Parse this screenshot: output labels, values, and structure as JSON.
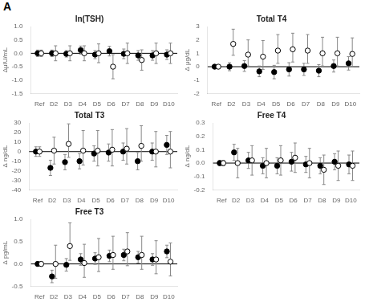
{
  "chart_data": [
    {
      "type": "scatter",
      "title": "ln(TSH)",
      "y_label": "ΔμIU/mL",
      "annotation": "A",
      "categories": [
        "Ref",
        "D2",
        "D3",
        "D4",
        "D5",
        "D6",
        "D7",
        "D8",
        "D9",
        "D10"
      ],
      "series": [
        {
          "color": "black",
          "marker": "circle",
          "values": [
            0.0,
            0.0,
            -0.02,
            0.12,
            -0.05,
            0.08,
            -0.02,
            -0.08,
            -0.08,
            -0.05
          ],
          "yerr_lo": [
            0.12,
            0.12,
            0.12,
            0.15,
            0.15,
            0.18,
            0.18,
            0.18,
            0.18,
            0.18
          ],
          "yerr_hi": [
            0.12,
            0.12,
            0.12,
            0.15,
            0.15,
            0.18,
            0.18,
            0.18,
            0.18,
            0.18
          ]
        },
        {
          "color": "white",
          "marker": "circle",
          "values": [
            0.0,
            0.0,
            0.0,
            0.0,
            0.0,
            -0.5,
            0.0,
            -0.25,
            0.0,
            0.0
          ],
          "yerr_lo": [
            0.12,
            0.28,
            0.28,
            0.28,
            0.35,
            0.45,
            0.38,
            0.38,
            0.38,
            0.38
          ],
          "yerr_hi": [
            0.12,
            0.28,
            0.28,
            0.28,
            0.35,
            0.45,
            0.38,
            0.38,
            0.38,
            0.38
          ]
        }
      ],
      "hline": 0,
      "ylim": [
        -1.5,
        1.0
      ],
      "yticks": [
        -1.5,
        {
          "value": -1.0,
          "label": "-1.0"
        },
        -0.5,
        {
          "value": 0,
          "label": "0.0"
        },
        0.5,
        {
          "value": 1.0,
          "label": "1.0"
        }
      ],
      "grid": false
    },
    {
      "type": "scatter",
      "title": "Total T4",
      "y_label": "Δ μg/dL",
      "categories": [
        "Ref",
        "D2",
        "D3",
        "D4",
        "D5",
        "D6",
        "D7",
        "D8",
        "D9",
        "D10"
      ],
      "series": [
        {
          "color": "black",
          "marker": "circle",
          "values": [
            0.0,
            0.0,
            0.05,
            -0.35,
            -0.4,
            -0.2,
            -0.2,
            -0.3,
            0.05,
            0.25
          ],
          "yerr_lo": [
            0.15,
            0.3,
            0.4,
            0.4,
            0.5,
            0.5,
            0.45,
            0.45,
            0.45,
            0.5
          ],
          "yerr_hi": [
            0.15,
            0.3,
            0.4,
            0.4,
            0.5,
            0.5,
            0.45,
            0.45,
            0.45,
            0.5
          ]
        },
        {
          "color": "white",
          "marker": "circle",
          "values": [
            0.0,
            1.7,
            0.9,
            0.75,
            1.2,
            1.3,
            1.2,
            1.0,
            1.0,
            0.95
          ],
          "yerr_lo": [
            0.15,
            0.85,
            0.85,
            0.95,
            0.95,
            0.95,
            0.95,
            0.95,
            0.95,
            0.95
          ],
          "yerr_hi": [
            0.15,
            1.1,
            1.1,
            1.2,
            1.2,
            1.2,
            1.2,
            1.2,
            1.2,
            1.2
          ]
        }
      ],
      "hline": 0,
      "ylim": [
        -2.0,
        3.0
      ],
      "yticks": [
        -2,
        -1,
        0,
        1,
        2,
        3
      ],
      "grid": false
    },
    {
      "type": "scatter",
      "title": "Total T3",
      "y_label": "Δ ng/dL",
      "categories": [
        "Ref",
        "D2",
        "D3",
        "D4",
        "D5",
        "D6",
        "D7",
        "D8",
        "D9",
        "D10"
      ],
      "series": [
        {
          "color": "black",
          "marker": "circle",
          "values": [
            0.0,
            -17.0,
            -11.0,
            -10.0,
            -2.0,
            -1.0,
            0.0,
            -10.0,
            0.0,
            7.0
          ],
          "yerr_lo": [
            5.0,
            8.0,
            8.0,
            8.0,
            8.0,
            9.0,
            9.0,
            9.0,
            9.0,
            10.0
          ],
          "yerr_hi": [
            5.0,
            8.0,
            8.0,
            8.0,
            8.0,
            9.0,
            9.0,
            9.0,
            9.0,
            10.0
          ]
        },
        {
          "color": "white",
          "marker": "circle",
          "values": [
            0.0,
            1.0,
            8.0,
            1.0,
            1.0,
            2.0,
            3.0,
            6.0,
            0.0,
            0.0
          ],
          "yerr_lo": [
            5.0,
            14.0,
            14.0,
            15.0,
            16.0,
            17.0,
            16.0,
            16.0,
            16.0,
            17.0
          ],
          "yerr_hi": [
            5.0,
            14.0,
            21.0,
            21.0,
            21.0,
            21.0,
            21.0,
            21.0,
            21.0,
            21.0
          ]
        }
      ],
      "hline": 0,
      "ylim": [
        -40,
        30
      ],
      "yticks": [
        -40,
        -30,
        -20,
        -10,
        0,
        10,
        20,
        30
      ],
      "grid": false
    },
    {
      "type": "scatter",
      "title": "Free T4",
      "y_label": "Δ ng/dL",
      "categories": [
        "Ref",
        "D2",
        "D3",
        "D4",
        "D5",
        "D6",
        "D7",
        "D8",
        "D9",
        "D10"
      ],
      "series": [
        {
          "color": "black",
          "marker": "circle",
          "values": [
            0.0,
            0.08,
            0.02,
            -0.02,
            -0.02,
            0.01,
            -0.01,
            -0.02,
            0.01,
            -0.01
          ],
          "yerr_lo": [
            0.02,
            0.06,
            0.06,
            0.06,
            0.06,
            0.07,
            0.06,
            0.06,
            0.06,
            0.07
          ],
          "yerr_hi": [
            0.02,
            0.06,
            0.06,
            0.06,
            0.06,
            0.07,
            0.06,
            0.06,
            0.06,
            0.07
          ]
        },
        {
          "color": "white",
          "marker": "circle",
          "values": [
            0.0,
            0.0,
            0.02,
            0.0,
            0.02,
            0.04,
            0.0,
            -0.05,
            -0.02,
            -0.02
          ],
          "yerr_lo": [
            0.02,
            0.11,
            0.11,
            0.11,
            0.11,
            0.11,
            0.11,
            0.11,
            0.11,
            0.11
          ],
          "yerr_hi": [
            0.02,
            0.11,
            0.11,
            0.11,
            0.11,
            0.11,
            0.11,
            0.11,
            0.11,
            0.11
          ]
        }
      ],
      "hline": 0,
      "ylim": [
        -0.2,
        0.3
      ],
      "yticks": [
        -0.2,
        -0.1,
        {
          "value": 0,
          "label": "0.0"
        },
        0.1,
        0.2,
        0.3
      ],
      "grid": false
    },
    {
      "type": "scatter",
      "title": "Free T3",
      "y_label": "Δ pg/mL",
      "categories": [
        "Ref",
        "D2",
        "D3",
        "D4",
        "D5",
        "D6",
        "D7",
        "D8",
        "D9",
        "D10"
      ],
      "series": [
        {
          "color": "black",
          "marker": "circle",
          "values": [
            0.0,
            -0.28,
            -0.02,
            0.1,
            0.12,
            0.18,
            0.2,
            0.15,
            0.1,
            0.28
          ],
          "yerr_lo": [
            0.05,
            0.14,
            0.14,
            0.13,
            0.13,
            0.13,
            0.13,
            0.13,
            0.13,
            0.14
          ],
          "yerr_hi": [
            0.05,
            0.14,
            0.14,
            0.13,
            0.13,
            0.13,
            0.13,
            0.13,
            0.13,
            0.14
          ]
        },
        {
          "color": "white",
          "marker": "circle",
          "values": [
            0.0,
            0.0,
            0.4,
            0.02,
            0.15,
            0.2,
            0.28,
            0.2,
            0.1,
            0.05
          ],
          "yerr_lo": [
            0.05,
            0.32,
            0.32,
            0.32,
            0.32,
            0.32,
            0.32,
            0.32,
            0.32,
            0.32
          ],
          "yerr_hi": [
            0.05,
            0.42,
            0.52,
            0.42,
            0.42,
            0.42,
            0.42,
            0.42,
            0.42,
            0.42
          ]
        }
      ],
      "hline": 0,
      "ylim": [
        -0.5,
        1.0
      ],
      "yticks": [
        -0.5,
        {
          "value": 0,
          "label": "0.0"
        },
        0.5,
        {
          "value": 1.0,
          "label": "1.0"
        }
      ],
      "grid": false
    }
  ]
}
